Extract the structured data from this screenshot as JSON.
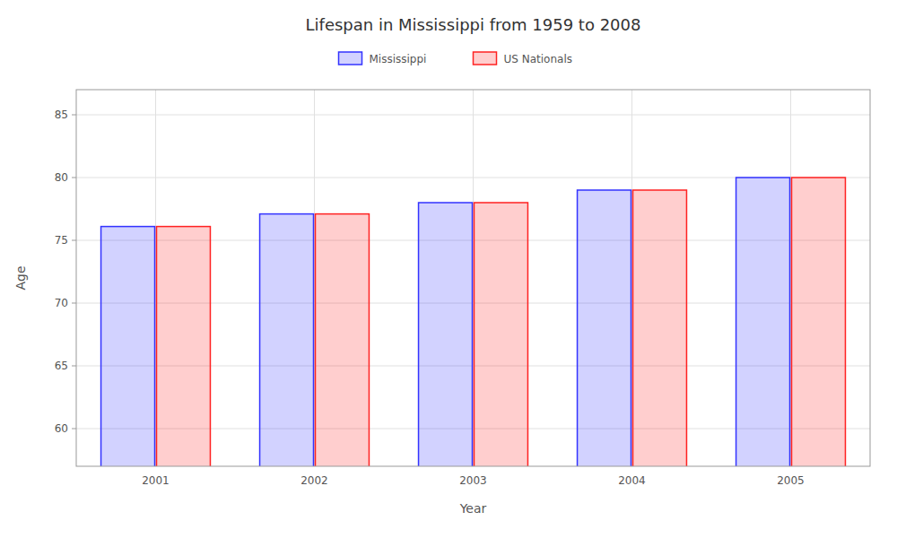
{
  "chart_data": {
    "type": "bar",
    "title": "Lifespan in Mississippi from 1959 to 2008",
    "x_label": "Year",
    "y_label": "Age",
    "categories": [
      "2001",
      "2002",
      "2003",
      "2004",
      "2005"
    ],
    "series": [
      {
        "name": "Mississippi",
        "color": "#3333ff",
        "values": [
          76.1,
          77.1,
          78.0,
          79.0,
          80.0
        ]
      },
      {
        "name": "US Nationals",
        "color": "#ff2222",
        "values": [
          76.1,
          77.1,
          78.0,
          79.0,
          80.0
        ]
      }
    ],
    "ylim": [
      57,
      87
    ],
    "yticks": [
      60,
      65,
      70,
      75,
      80,
      85
    ],
    "grid": true,
    "legend": "top"
  }
}
